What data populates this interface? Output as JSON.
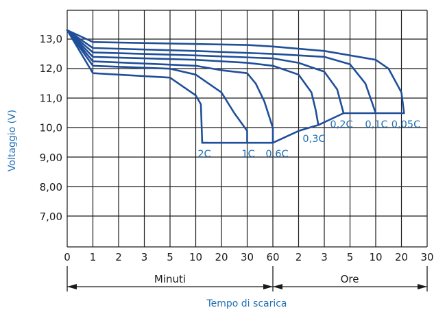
{
  "chart_data": {
    "type": "line",
    "title": "",
    "xlabel": "Tempo di scarica",
    "ylabel": "Voltaggio (V)",
    "y_ticks": [
      "13,0",
      "12,0",
      "11,0",
      "10,0",
      "9,00",
      "8,00",
      "7,00"
    ],
    "x_ticks": [
      "0",
      "1",
      "2",
      "3",
      "5",
      "10",
      "20",
      "30",
      "60",
      "2",
      "3",
      "5",
      "10",
      "20",
      "30"
    ],
    "x_sections": [
      "Minuti",
      "Ore"
    ],
    "grid": true,
    "series": [
      {
        "name": "2C",
        "x": [
          0,
          1,
          5,
          10,
          12,
          12.5,
          14.7
        ],
        "y": [
          13.3,
          11.85,
          11.7,
          11.1,
          10.8,
          9.5,
          9.5
        ]
      },
      {
        "name": "1C",
        "x": [
          0,
          1,
          5,
          10,
          20,
          25,
          30,
          30
        ],
        "y": [
          13.3,
          12.1,
          12.0,
          11.8,
          11.2,
          10.5,
          9.9,
          9.5
        ]
      },
      {
        "name": "0,6C",
        "x": [
          0,
          1,
          10,
          20,
          30,
          40,
          50,
          60,
          60
        ],
        "y": [
          13.3,
          12.25,
          12.1,
          11.95,
          11.85,
          11.5,
          10.9,
          10.0,
          9.5
        ]
      },
      {
        "name": "0,3C",
        "x": [
          0,
          1,
          10,
          30,
          60,
          120,
          150,
          160,
          166
        ],
        "y": [
          13.3,
          12.4,
          12.3,
          12.2,
          12.1,
          11.8,
          11.2,
          10.6,
          10.1
        ]
      },
      {
        "name": "0,2C",
        "x": [
          0,
          1,
          10,
          60,
          120,
          180,
          240,
          270
        ],
        "y": [
          13.3,
          12.55,
          12.45,
          12.35,
          12.2,
          11.9,
          11.3,
          10.5
        ]
      },
      {
        "name": "0,1C",
        "x": [
          0,
          1,
          10,
          60,
          180,
          300,
          480,
          600
        ],
        "y": [
          13.3,
          12.7,
          12.6,
          12.5,
          12.4,
          12.15,
          11.5,
          10.5
        ]
      },
      {
        "name": "0,05C",
        "x": [
          0,
          1,
          30,
          60,
          180,
          600,
          900,
          1200,
          1260
        ],
        "y": [
          13.3,
          12.9,
          12.8,
          12.75,
          12.6,
          12.3,
          12.0,
          11.2,
          10.5
        ]
      }
    ],
    "cutoff_line": {
      "x": [
        12.5,
        60,
        120,
        166,
        270,
        600,
        1260
      ],
      "y": [
        9.5,
        9.5,
        9.9,
        10.1,
        10.5,
        10.5,
        10.5
      ]
    }
  }
}
